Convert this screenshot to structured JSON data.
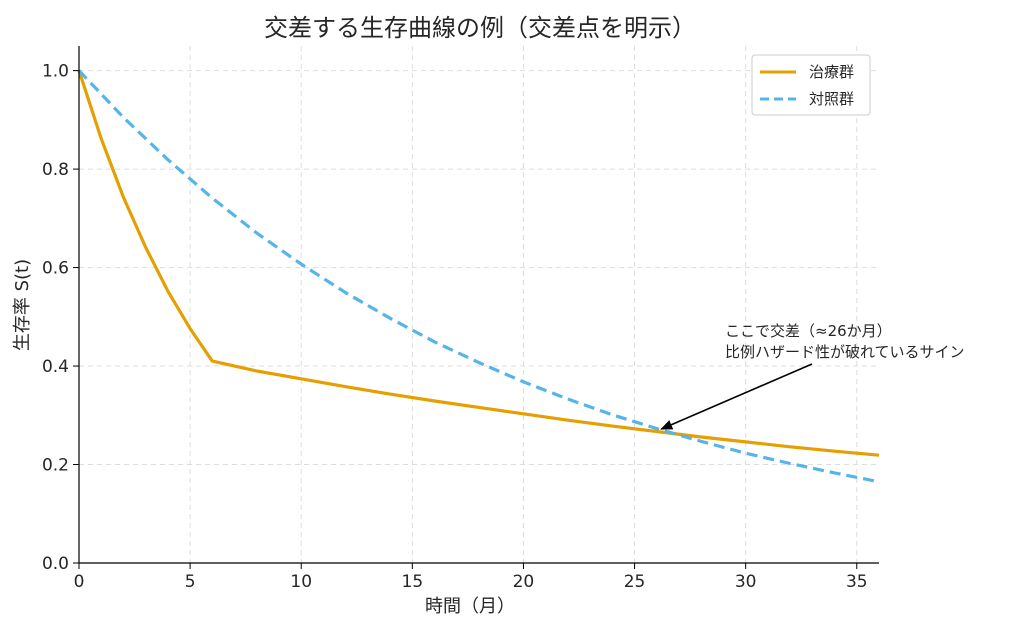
{
  "chart_data": {
    "type": "line",
    "title": "交差する生存曲線の例（交差点を明示）",
    "xlabel": "時間（月）",
    "ylabel": "生存率 S(t)",
    "xlim": [
      0,
      36
    ],
    "ylim": [
      0,
      1.05
    ],
    "xticks": [
      0,
      5,
      10,
      15,
      20,
      25,
      30,
      35
    ],
    "yticks": [
      0.0,
      0.2,
      0.4,
      0.6,
      0.8,
      1.0
    ],
    "xtick_labels": [
      "0",
      "5",
      "10",
      "15",
      "20",
      "25",
      "30",
      "35"
    ],
    "ytick_labels": [
      "0.0",
      "0.2",
      "0.4",
      "0.6",
      "0.8",
      "1.0"
    ],
    "grid": true,
    "legend_position": "top-right",
    "series": [
      {
        "name": "治療群",
        "color": "#E69F00",
        "style": "solid",
        "x": [
          0,
          1,
          2,
          3,
          4,
          5,
          6,
          8,
          10,
          12,
          14,
          16,
          18,
          20,
          22,
          24,
          26,
          28,
          30,
          32,
          34,
          36
        ],
        "y": [
          1.0,
          0.862,
          0.743,
          0.641,
          0.552,
          0.476,
          0.41,
          0.39,
          0.374,
          0.358,
          0.343,
          0.329,
          0.316,
          0.303,
          0.29,
          0.278,
          0.267,
          0.256,
          0.246,
          0.236,
          0.227,
          0.219
        ]
      },
      {
        "name": "対照群",
        "color": "#56B4E9",
        "style": "dashed",
        "x": [
          0,
          2,
          4,
          6,
          8,
          10,
          12,
          14,
          16,
          18,
          20,
          22,
          24,
          26,
          28,
          30,
          32,
          34,
          36
        ],
        "y": [
          1.0,
          0.905,
          0.819,
          0.741,
          0.67,
          0.607,
          0.549,
          0.497,
          0.449,
          0.407,
          0.368,
          0.333,
          0.301,
          0.273,
          0.247,
          0.223,
          0.202,
          0.183,
          0.165
        ]
      }
    ],
    "annotation": {
      "line1": "ここで交差（≈26か月）",
      "line2": "比例ハザード性が破れているサイン",
      "target_x": 26.2,
      "target_y": 0.272
    }
  }
}
